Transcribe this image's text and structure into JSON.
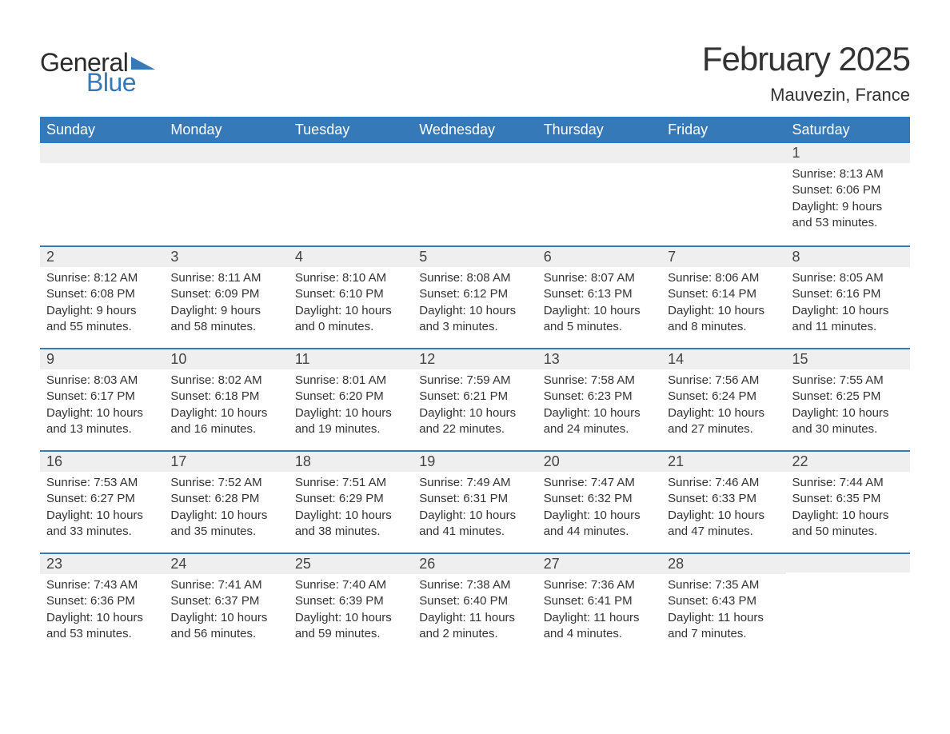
{
  "logo": {
    "textGeneral": "General",
    "textBlue": "Blue",
    "arrowColor": "#3679b8"
  },
  "title": "February 2025",
  "location": "Mauvezin, France",
  "colors": {
    "headerBg": "#3679b8",
    "headerText": "#ffffff",
    "dayStripeBg": "#efefef",
    "dayStripeBorder": "#3679b8",
    "bodyText": "#333333",
    "pageBg": "#ffffff"
  },
  "typography": {
    "titleFontSize": 42,
    "locationFontSize": 22,
    "weekdayFontSize": 18,
    "dayNumFontSize": 18,
    "bodyFontSize": 15
  },
  "weekdays": [
    "Sunday",
    "Monday",
    "Tuesday",
    "Wednesday",
    "Thursday",
    "Friday",
    "Saturday"
  ],
  "weeks": [
    [
      null,
      null,
      null,
      null,
      null,
      null,
      {
        "day": 1,
        "sunrise": "8:13 AM",
        "sunset": "6:06 PM",
        "daylight": "9 hours and 53 minutes."
      }
    ],
    [
      {
        "day": 2,
        "sunrise": "8:12 AM",
        "sunset": "6:08 PM",
        "daylight": "9 hours and 55 minutes."
      },
      {
        "day": 3,
        "sunrise": "8:11 AM",
        "sunset": "6:09 PM",
        "daylight": "9 hours and 58 minutes."
      },
      {
        "day": 4,
        "sunrise": "8:10 AM",
        "sunset": "6:10 PM",
        "daylight": "10 hours and 0 minutes."
      },
      {
        "day": 5,
        "sunrise": "8:08 AM",
        "sunset": "6:12 PM",
        "daylight": "10 hours and 3 minutes."
      },
      {
        "day": 6,
        "sunrise": "8:07 AM",
        "sunset": "6:13 PM",
        "daylight": "10 hours and 5 minutes."
      },
      {
        "day": 7,
        "sunrise": "8:06 AM",
        "sunset": "6:14 PM",
        "daylight": "10 hours and 8 minutes."
      },
      {
        "day": 8,
        "sunrise": "8:05 AM",
        "sunset": "6:16 PM",
        "daylight": "10 hours and 11 minutes."
      }
    ],
    [
      {
        "day": 9,
        "sunrise": "8:03 AM",
        "sunset": "6:17 PM",
        "daylight": "10 hours and 13 minutes."
      },
      {
        "day": 10,
        "sunrise": "8:02 AM",
        "sunset": "6:18 PM",
        "daylight": "10 hours and 16 minutes."
      },
      {
        "day": 11,
        "sunrise": "8:01 AM",
        "sunset": "6:20 PM",
        "daylight": "10 hours and 19 minutes."
      },
      {
        "day": 12,
        "sunrise": "7:59 AM",
        "sunset": "6:21 PM",
        "daylight": "10 hours and 22 minutes."
      },
      {
        "day": 13,
        "sunrise": "7:58 AM",
        "sunset": "6:23 PM",
        "daylight": "10 hours and 24 minutes."
      },
      {
        "day": 14,
        "sunrise": "7:56 AM",
        "sunset": "6:24 PM",
        "daylight": "10 hours and 27 minutes."
      },
      {
        "day": 15,
        "sunrise": "7:55 AM",
        "sunset": "6:25 PM",
        "daylight": "10 hours and 30 minutes."
      }
    ],
    [
      {
        "day": 16,
        "sunrise": "7:53 AM",
        "sunset": "6:27 PM",
        "daylight": "10 hours and 33 minutes."
      },
      {
        "day": 17,
        "sunrise": "7:52 AM",
        "sunset": "6:28 PM",
        "daylight": "10 hours and 35 minutes."
      },
      {
        "day": 18,
        "sunrise": "7:51 AM",
        "sunset": "6:29 PM",
        "daylight": "10 hours and 38 minutes."
      },
      {
        "day": 19,
        "sunrise": "7:49 AM",
        "sunset": "6:31 PM",
        "daylight": "10 hours and 41 minutes."
      },
      {
        "day": 20,
        "sunrise": "7:47 AM",
        "sunset": "6:32 PM",
        "daylight": "10 hours and 44 minutes."
      },
      {
        "day": 21,
        "sunrise": "7:46 AM",
        "sunset": "6:33 PM",
        "daylight": "10 hours and 47 minutes."
      },
      {
        "day": 22,
        "sunrise": "7:44 AM",
        "sunset": "6:35 PM",
        "daylight": "10 hours and 50 minutes."
      }
    ],
    [
      {
        "day": 23,
        "sunrise": "7:43 AM",
        "sunset": "6:36 PM",
        "daylight": "10 hours and 53 minutes."
      },
      {
        "day": 24,
        "sunrise": "7:41 AM",
        "sunset": "6:37 PM",
        "daylight": "10 hours and 56 minutes."
      },
      {
        "day": 25,
        "sunrise": "7:40 AM",
        "sunset": "6:39 PM",
        "daylight": "10 hours and 59 minutes."
      },
      {
        "day": 26,
        "sunrise": "7:38 AM",
        "sunset": "6:40 PM",
        "daylight": "11 hours and 2 minutes."
      },
      {
        "day": 27,
        "sunrise": "7:36 AM",
        "sunset": "6:41 PM",
        "daylight": "11 hours and 4 minutes."
      },
      {
        "day": 28,
        "sunrise": "7:35 AM",
        "sunset": "6:43 PM",
        "daylight": "11 hours and 7 minutes."
      },
      null
    ]
  ],
  "labels": {
    "sunrise": "Sunrise:",
    "sunset": "Sunset:",
    "daylight": "Daylight:"
  }
}
